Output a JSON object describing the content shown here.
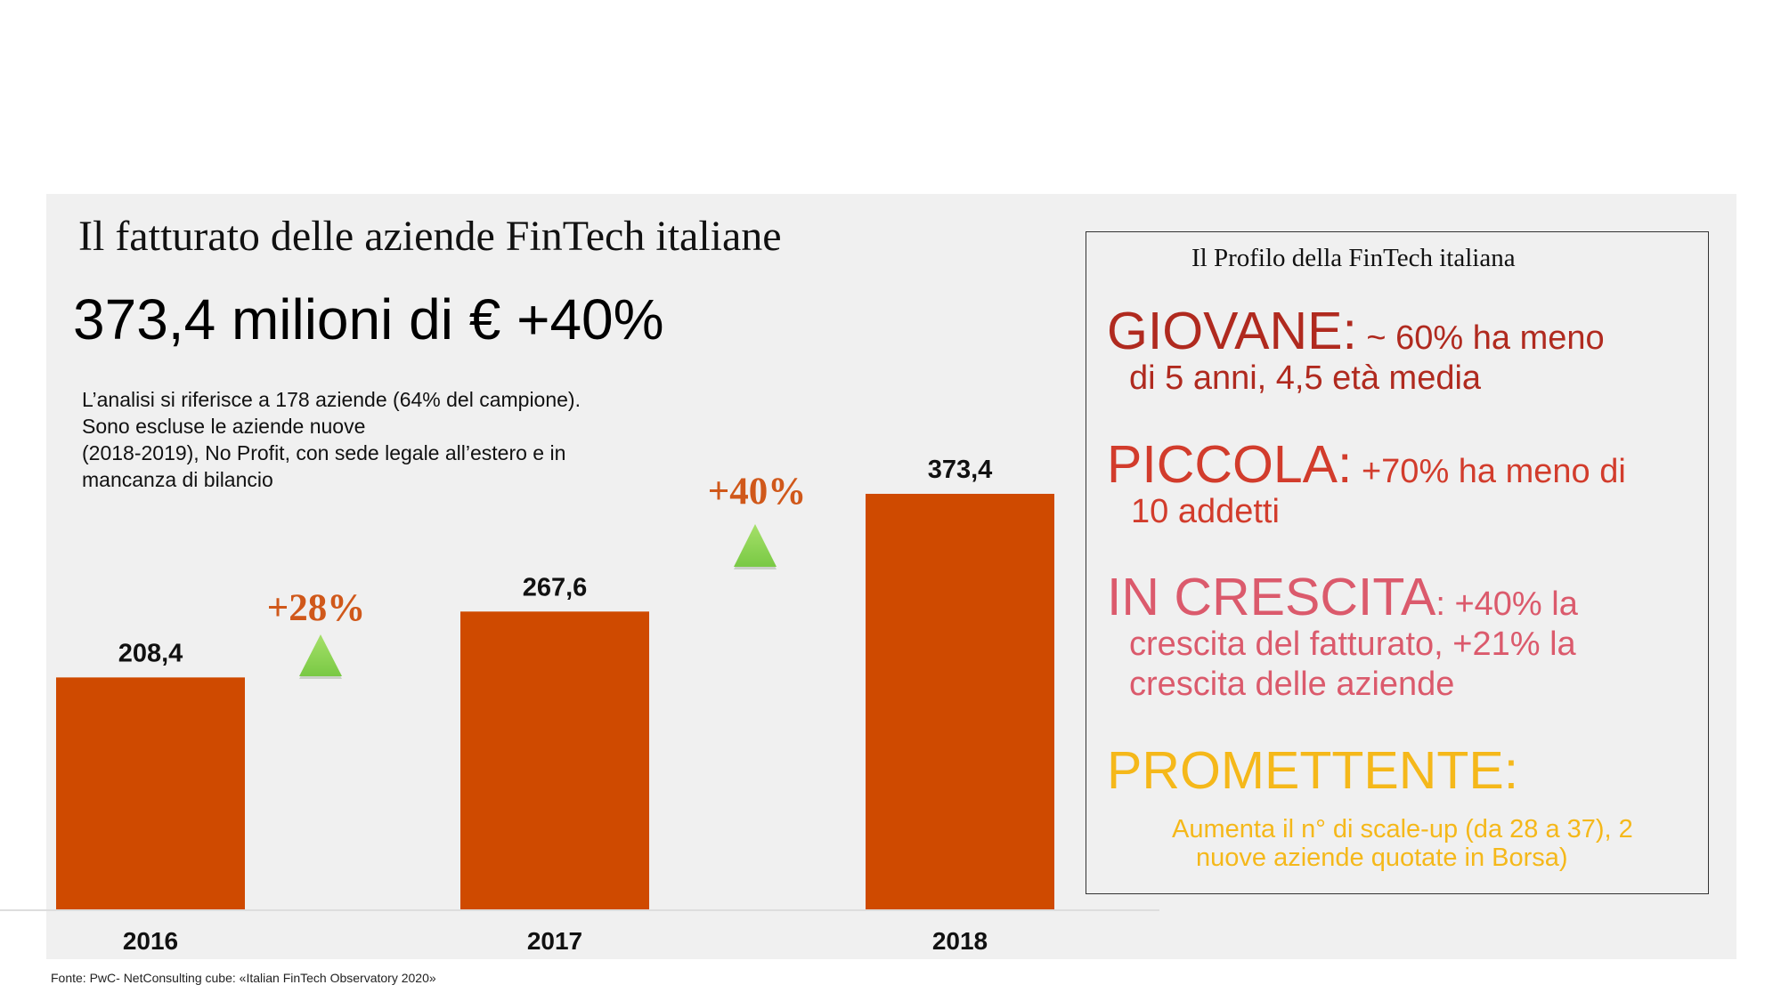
{
  "title": "Il fatturato delle aziende FinTech italiane",
  "headline": "373,4 milioni di €  +40%",
  "note": [
    "L’analisi si riferisce a 178 aziende (64% del campione).",
    "Sono escluse le aziende nuove",
    "(2018-2019), No Profit, con sede legale all’estero e in",
    "mancanza di bilancio"
  ],
  "chart_data": {
    "type": "bar",
    "categories": [
      "2016",
      "2017",
      "2018"
    ],
    "values": [
      208.4,
      267.6,
      373.4
    ],
    "value_labels": [
      "208,4",
      "267,6",
      "373,4"
    ],
    "growth": [
      {
        "label": "+28%",
        "between": [
          "2016",
          "2017"
        ]
      },
      {
        "label": "+40%",
        "between": [
          "2017",
          "2018"
        ]
      }
    ],
    "ylim": [
      0,
      373.4
    ],
    "bar_color": "#cf4a00",
    "growth_color": "#d0581a",
    "arrow_color": "#79c944",
    "grid": false
  },
  "profile": {
    "title": "Il Profilo della FinTech italiana",
    "items": [
      {
        "key": "GIOVANE:",
        "desc": " ~ 60% ha meno",
        "desc2": "di 5 anni, 4,5 età media",
        "color": "#b02a1f"
      },
      {
        "key": "PICCOLA:",
        "desc": " +70% ha meno di",
        "desc2": "10 addetti",
        "color": "#d23c2c"
      },
      {
        "key": "IN CRESCITA",
        "desc": ": +40% la",
        "desc2": "crescita del fatturato, +21% la",
        "desc3": "crescita delle aziende",
        "color": "#db5a6c"
      },
      {
        "key": "PROMETTENTE:",
        "desc": "Aumenta il n° di scale-up (da 28 a 37), 2",
        "desc2": "nuove aziende quotate in Borsa)",
        "color": "#f5b81a"
      }
    ]
  },
  "source": "Fonte: PwC- NetConsulting cube: «Italian FinTech Observatory 2020»"
}
